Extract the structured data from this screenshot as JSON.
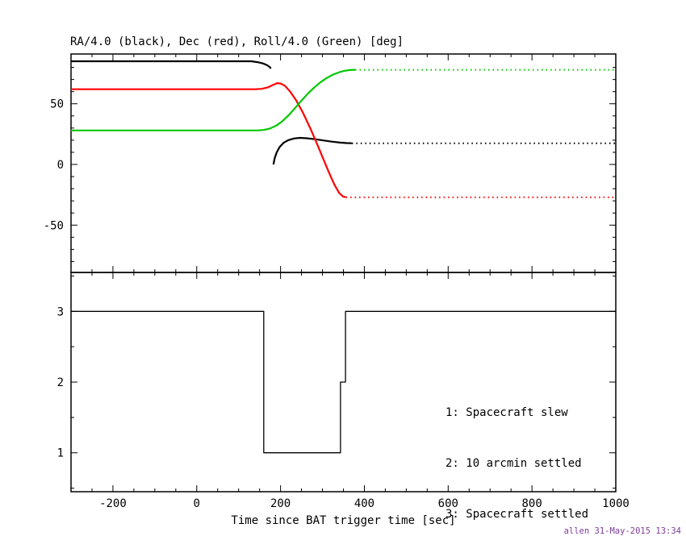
{
  "credit": "allen 31-May-2015 13:34",
  "colors": {
    "black": "#000000",
    "red": "#ff0000",
    "green": "#00c800",
    "credit": "#7d3c98"
  },
  "chart_data": [
    {
      "type": "line",
      "title": "RA/4.0 (black), Dec (red), Roll/4.0 (Green) [deg]",
      "xlim": [
        -300,
        1000
      ],
      "ylim": [
        -89,
        91
      ],
      "xticks": [
        -200,
        0,
        200,
        400,
        600,
        800,
        1000
      ],
      "yticks": [
        -50,
        0,
        50
      ],
      "grid": false,
      "series": [
        {
          "name": "ra-pre-slew",
          "label": "RA/4.0 (pre-slew)",
          "color": "black",
          "style": "solid",
          "width": 2.2,
          "points": [
            [
              -300,
              85
            ],
            [
              100,
              85
            ],
            [
              130,
              85
            ],
            [
              145,
              84.3
            ],
            [
              158,
              83.2
            ],
            [
              168,
              81.8
            ],
            [
              174,
              80.3
            ],
            [
              177,
              79
            ]
          ]
        },
        {
          "name": "ra-post-slew",
          "label": "RA/4.0 (post-slew)",
          "color": "black",
          "style": "solid",
          "width": 2.2,
          "points": [
            [
              183,
              0
            ],
            [
              186,
              5
            ],
            [
              191,
              10
            ],
            [
              198,
              14.5
            ],
            [
              207,
              17.8
            ],
            [
              218,
              20
            ],
            [
              232,
              21.4
            ],
            [
              246,
              21.9
            ],
            [
              262,
              21.6
            ],
            [
              282,
              20.8
            ],
            [
              302,
              19.8
            ],
            [
              322,
              18.8
            ],
            [
              342,
              18
            ],
            [
              358,
              17.6
            ],
            [
              370,
              17.5
            ]
          ]
        },
        {
          "name": "ra-settled",
          "label": "RA/4.0 (settled)",
          "color": "black",
          "style": "dotted",
          "width": 2,
          "points": [
            [
              370,
              17.5
            ],
            [
              1000,
              17.5
            ]
          ]
        },
        {
          "name": "dec",
          "label": "Dec",
          "color": "red",
          "style": "solid",
          "width": 2.2,
          "points": [
            [
              -300,
              62
            ],
            [
              140,
              62
            ],
            [
              155,
              62.3
            ],
            [
              170,
              63.5
            ],
            [
              182,
              65.5
            ],
            [
              192,
              67
            ],
            [
              201,
              66.6
            ],
            [
              211,
              64.6
            ],
            [
              223,
              60
            ],
            [
              237,
              53
            ],
            [
              253,
              43
            ],
            [
              270,
              30.5
            ],
            [
              287,
              17
            ],
            [
              302,
              4.5
            ],
            [
              316,
              -7
            ],
            [
              329,
              -17
            ],
            [
              340,
              -23.5
            ],
            [
              349,
              -26.4
            ],
            [
              356,
              -27
            ]
          ]
        },
        {
          "name": "dec-settled",
          "label": "Dec (settled)",
          "color": "red",
          "style": "dotted",
          "width": 2,
          "points": [
            [
              356,
              -27
            ],
            [
              1000,
              -27
            ]
          ]
        },
        {
          "name": "roll",
          "label": "Roll/4.0",
          "color": "green",
          "style": "solid",
          "width": 2.2,
          "points": [
            [
              -300,
              28
            ],
            [
              145,
              28
            ],
            [
              160,
              28.4
            ],
            [
              175,
              29.6
            ],
            [
              190,
              32
            ],
            [
              205,
              35.8
            ],
            [
              220,
              40.8
            ],
            [
              235,
              46.6
            ],
            [
              250,
              52.6
            ],
            [
              265,
              58.3
            ],
            [
              280,
              63.3
            ],
            [
              295,
              67.6
            ],
            [
              310,
              71.2
            ],
            [
              325,
              74
            ],
            [
              340,
              76
            ],
            [
              353,
              77.2
            ],
            [
              365,
              77.8
            ],
            [
              378,
              78
            ]
          ]
        },
        {
          "name": "roll-settled",
          "label": "Roll/4.0 (settled)",
          "color": "green",
          "style": "dotted",
          "width": 2,
          "points": [
            [
              378,
              78
            ],
            [
              1000,
              78
            ]
          ]
        }
      ]
    },
    {
      "type": "line",
      "title": "",
      "xlabel": "Time since BAT trigger time [sec]",
      "xlim": [
        -300,
        1000
      ],
      "ylim": [
        0.45,
        3.55
      ],
      "xticks": [
        -200,
        0,
        200,
        400,
        600,
        800,
        1000
      ],
      "yticks": [
        1,
        2,
        3
      ],
      "grid": false,
      "legend_position": "inside-right",
      "legend": [
        "1: Spacecraft slew",
        "2: 10 arcmin settled",
        "3: Spacecraft settled"
      ],
      "series": [
        {
          "name": "settling-state",
          "label": "Spacecraft settling state",
          "color": "black",
          "style": "solid",
          "width": 1.3,
          "points": [
            [
              -300,
              3
            ],
            [
              160,
              3
            ],
            [
              160,
              1
            ],
            [
              343,
              1
            ],
            [
              343,
              2
            ],
            [
              355,
              2
            ],
            [
              355,
              3
            ],
            [
              1000,
              3
            ]
          ]
        }
      ]
    }
  ]
}
